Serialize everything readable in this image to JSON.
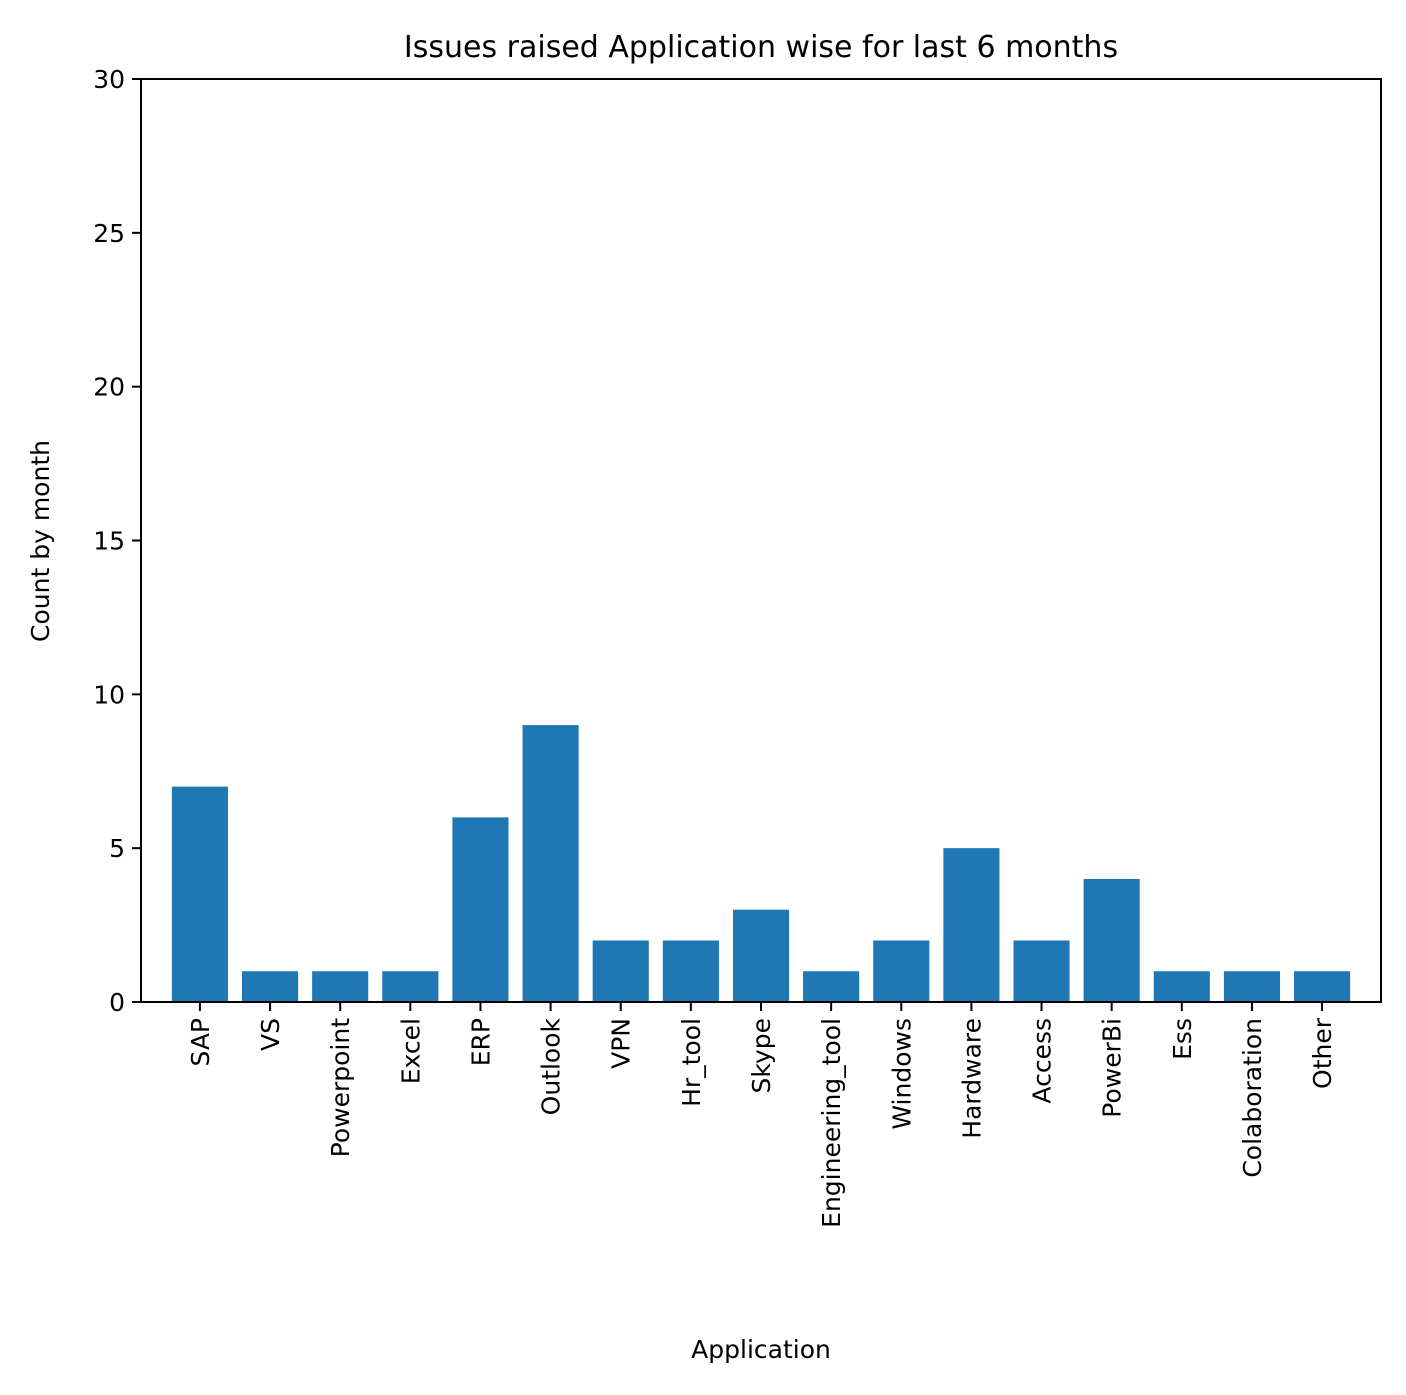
{
  "chart_data": {
    "type": "bar",
    "title": "Issues raised Application wise for last 6 months",
    "xlabel": "Application",
    "ylabel": "Count by month",
    "categories": [
      "SAP",
      "VS",
      "Powerpoint",
      "Excel",
      "ERP",
      "Outlook",
      "VPN",
      "Hr_tool",
      "Skype",
      "Engineering_tool",
      "Windows",
      "Hardware",
      "Access",
      "PowerBi",
      "Ess",
      "Colaboration",
      "Other"
    ],
    "values": [
      7,
      1,
      1,
      1,
      6,
      9,
      2,
      2,
      3,
      1,
      2,
      5,
      2,
      4,
      1,
      1,
      1
    ],
    "ylim": [
      0,
      30
    ],
    "yticks": [
      "0",
      "5",
      "10",
      "15",
      "20",
      "25",
      "30"
    ],
    "grid": false,
    "bar_color": "#1f77b4"
  }
}
